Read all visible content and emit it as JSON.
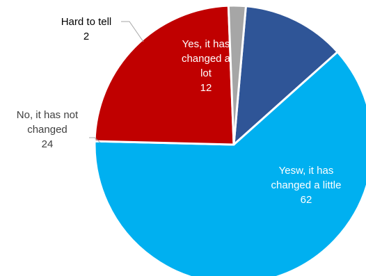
{
  "chart_data": {
    "type": "pie",
    "title": "",
    "slices": [
      {
        "label_lines": [
          "Yes, it has",
          "changed a",
          "lot"
        ],
        "value": 12,
        "color": "#2F5597",
        "text_color": "#ffffff"
      },
      {
        "label_lines": [
          "Yesw, it has",
          "changed a little"
        ],
        "value": 62,
        "color": "#00B0F0",
        "text_color": "#ffffff"
      },
      {
        "label_lines": [
          "No, it has not",
          "changed"
        ],
        "value": 24,
        "color": "#C00000",
        "text_color": "#404040"
      },
      {
        "label_lines": [
          "Hard to tell"
        ],
        "value": 2,
        "color": "#A6A6A6",
        "text_color": "#000000"
      }
    ],
    "start_angle_deg": 5,
    "direction": "clockwise",
    "legend": "none"
  }
}
